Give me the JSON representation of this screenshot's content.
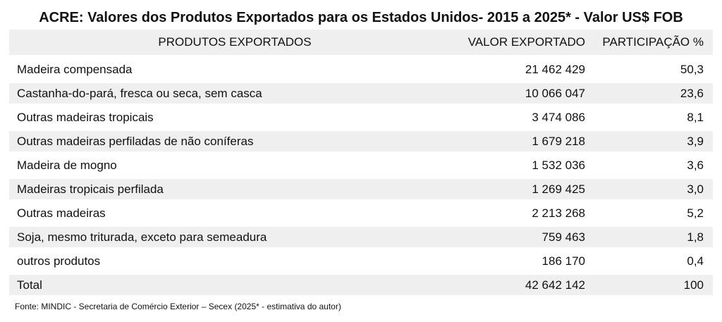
{
  "title": "ACRE: Valores dos Produtos Exportados para os Estados Unidos- 2015 a 2025* - Valor US$ FOB",
  "table": {
    "headers": {
      "produto": "PRODUTOS EXPORTADOS",
      "valor": "VALOR EXPORTADO",
      "participacao": "PARTICIPAÇÃO %"
    },
    "rows": [
      {
        "produto": "Madeira compensada",
        "valor": "21 462 429",
        "participacao": "50,3"
      },
      {
        "produto": "Castanha-do-pará, fresca ou seca, sem casca",
        "valor": "10 066 047",
        "participacao": "23,6"
      },
      {
        "produto": "Outras madeiras tropicais",
        "valor": "3 474 086",
        "participacao": "8,1"
      },
      {
        "produto": "Outras madeiras perfiladas de não coníferas",
        "valor": "1 679 218",
        "participacao": "3,9"
      },
      {
        "produto": "Madeira de mogno",
        "valor": "1 532 036",
        "participacao": "3,6"
      },
      {
        "produto": "Madeiras tropicais perfilada",
        "valor": "1 269 425",
        "participacao": "3,0"
      },
      {
        "produto": "Outras madeiras",
        "valor": "2 213 268",
        "participacao": "5,2"
      },
      {
        "produto": "Soja, mesmo triturada, exceto para semeadura",
        "valor": "759 463",
        "participacao": "1,8"
      },
      {
        "produto": "outros produtos",
        "valor": "186 170",
        "participacao": "0,4"
      }
    ],
    "total": {
      "produto": "Total",
      "valor": "42 642 142",
      "participacao": "100"
    }
  },
  "footer": "Fonte: MINDIC - Secretaria de Comércio Exterior – Secex (2025* - estimativa do autor)"
}
